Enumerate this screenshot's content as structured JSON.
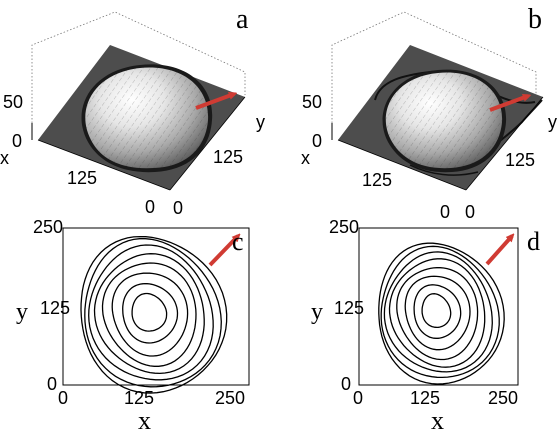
{
  "panels": [
    {
      "id": "a",
      "label": "a",
      "type": "surface-3d",
      "z_ticks": [
        "50",
        "0"
      ],
      "x_axis_label": "x",
      "x_ticks": [
        "125",
        "0"
      ],
      "y_axis_label": "y",
      "y_ticks": [
        "125",
        "0"
      ]
    },
    {
      "id": "b",
      "label": "b",
      "type": "surface-3d",
      "z_ticks": [
        "50",
        "0"
      ],
      "x_axis_label": "x",
      "x_ticks": [
        "125",
        "0"
      ],
      "y_axis_label": "y",
      "y_ticks": [
        "125",
        "0"
      ]
    },
    {
      "id": "c",
      "label": "c",
      "type": "contour",
      "x_axis_label": "x",
      "y_axis_label": "y",
      "x_ticks": [
        "0",
        "125",
        "250"
      ],
      "y_ticks": [
        "250",
        "125",
        "0"
      ],
      "xlim": [
        0,
        250
      ],
      "ylim": [
        0,
        250
      ]
    },
    {
      "id": "d",
      "label": "d",
      "type": "contour",
      "x_axis_label": "x",
      "y_axis_label": "y",
      "x_ticks": [
        "0",
        "125",
        "250"
      ],
      "y_ticks": [
        "250",
        "125",
        "0"
      ],
      "xlim": [
        0,
        250
      ],
      "ylim": [
        0,
        250
      ]
    }
  ],
  "colors": {
    "arrow": "#d03b33",
    "surface_plane": "#4d4d4d",
    "contour_line": "#000000"
  }
}
